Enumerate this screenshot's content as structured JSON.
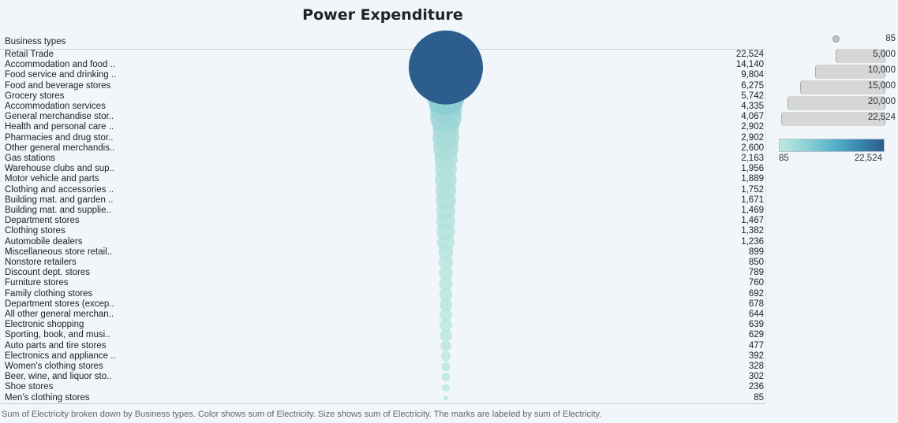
{
  "title": "Power Expenditure",
  "caption": "Sum of Electricity broken down by Business types.  Color shows sum of Electricity.  Size shows sum of Electricity.  The marks are labeled by sum of Electricity.",
  "chart_data": {
    "type": "scatter",
    "title": "Power Expenditure",
    "row_header": "Business types",
    "categories": [
      "Retail Trade",
      "Accommodation and food ..",
      "Food service and drinking ..",
      "Food and beverage stores",
      "Grocery stores",
      "Accommodation services",
      "General merchandise stor..",
      "Health and personal care ..",
      "Pharmacies and drug stor..",
      "Other general merchandis..",
      "Gas stations",
      "Warehouse clubs and sup..",
      "Motor vehicle and parts",
      "Clothing and accessories ..",
      "Building mat. and garden ..",
      "Building mat. and supplie..",
      "Department stores",
      "Clothing stores",
      "Automobile dealers",
      "Miscellaneous store retail..",
      "Nonstore retailers",
      "Discount dept. stores",
      "Furniture stores",
      "Family clothing stores",
      "Department stores (excep..",
      "All other general merchan..",
      "Electronic shopping",
      "Sporting, book, and  musi..",
      "Auto parts and tire stores",
      "Electronics and appliance ..",
      "Women's clothing stores",
      "Beer, wine, and liquor sto..",
      "Shoe stores",
      "Men's clothing stores"
    ],
    "values": [
      22524,
      14140,
      9804,
      6275,
      5742,
      4335,
      4067,
      2902,
      2902,
      2600,
      2163,
      1956,
      1889,
      1752,
      1671,
      1469,
      1467,
      1382,
      1236,
      899,
      850,
      789,
      760,
      692,
      678,
      644,
      639,
      629,
      477,
      392,
      328,
      302,
      236,
      85
    ],
    "value_labels": [
      "22,524",
      "14,140",
      "9,804",
      "6,275",
      "5,742",
      "4,335",
      "4,067",
      "2,902",
      "2,902",
      "2,600",
      "2,163",
      "1,956",
      "1,889",
      "1,752",
      "1,671",
      "1,469",
      "1,467",
      "1,382",
      "1,236",
      "899",
      "850",
      "789",
      "760",
      "692",
      "678",
      "644",
      "639",
      "629",
      "477",
      "392",
      "328",
      "302",
      "236",
      "85"
    ],
    "size_legend": {
      "labels": [
        "85",
        "5,000",
        "10,000",
        "15,000",
        "20,000",
        "22,524"
      ],
      "values": [
        85,
        5000,
        10000,
        15000,
        20000,
        22524
      ]
    },
    "color_legend": {
      "min_label": "85",
      "max_label": "22,524",
      "min": 85,
      "max": 22524,
      "min_color": "#bfe8e2",
      "max_color": "#2c5d8c"
    },
    "legend_position": "right"
  }
}
